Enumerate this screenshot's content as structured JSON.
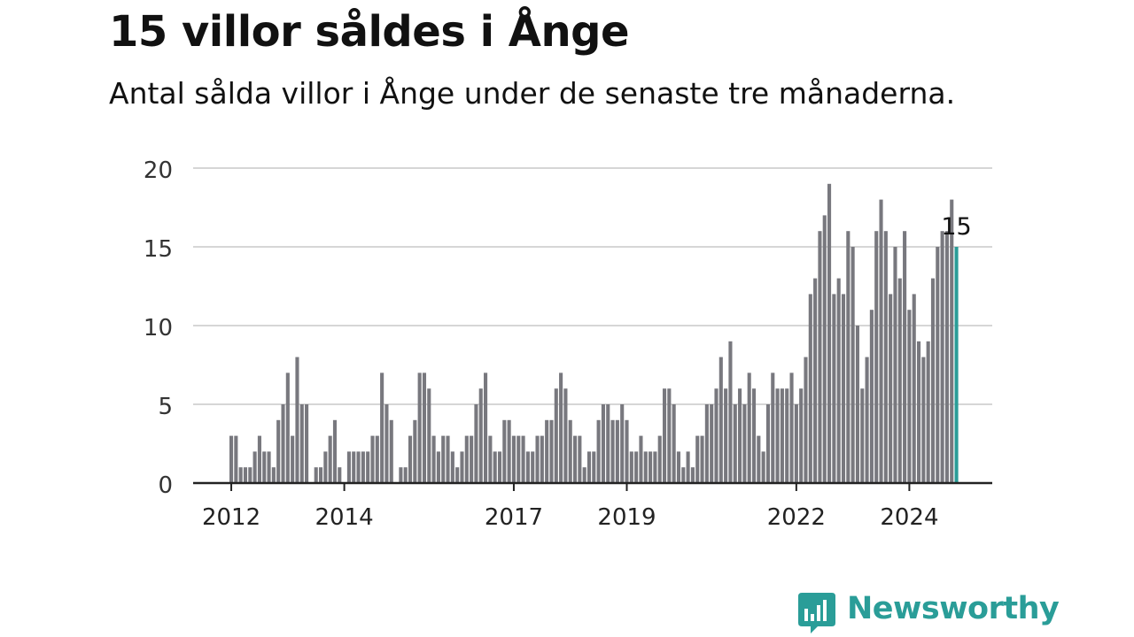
{
  "header": {
    "title": "15 villor såldes i Ånge",
    "subtitle": "Antal sålda villor i Ånge under de senaste tre månaderna."
  },
  "brand": {
    "name": "Newsworthy",
    "color": "#2a9d98",
    "icon": "bar-chart-speech-bubble-icon"
  },
  "chart_data": {
    "type": "bar",
    "x_start": "2012-01",
    "x_interval": "month",
    "x_tick_labels": [
      "2012",
      "2014",
      "2017",
      "2019",
      "2022",
      "2024"
    ],
    "x_tick_dates": [
      "2012-01",
      "2014-01",
      "2017-01",
      "2019-01",
      "2022-01",
      "2024-01"
    ],
    "ylim": [
      0,
      20
    ],
    "y_ticks": [
      0,
      5,
      10,
      15,
      20
    ],
    "grid": true,
    "values": [
      3,
      3,
      1,
      1,
      1,
      2,
      3,
      2,
      2,
      1,
      4,
      5,
      7,
      3,
      8,
      5,
      5,
      0,
      1,
      1,
      2,
      3,
      4,
      1,
      0,
      2,
      2,
      2,
      2,
      2,
      3,
      3,
      7,
      5,
      4,
      0,
      1,
      1,
      3,
      4,
      7,
      7,
      6,
      3,
      2,
      3,
      3,
      2,
      1,
      2,
      3,
      3,
      5,
      6,
      7,
      3,
      2,
      2,
      4,
      4,
      3,
      3,
      3,
      2,
      2,
      3,
      3,
      4,
      4,
      6,
      7,
      6,
      4,
      3,
      3,
      1,
      2,
      2,
      4,
      5,
      5,
      4,
      4,
      5,
      4,
      2,
      2,
      3,
      2,
      2,
      2,
      3,
      6,
      6,
      5,
      2,
      1,
      2,
      1,
      3,
      3,
      5,
      5,
      6,
      8,
      6,
      9,
      5,
      6,
      5,
      7,
      6,
      3,
      2,
      5,
      7,
      6,
      6,
      6,
      7,
      5,
      6,
      8,
      12,
      13,
      16,
      17,
      19,
      12,
      13,
      12,
      16,
      15,
      10,
      6,
      8,
      11,
      16,
      18,
      16,
      12,
      15,
      13,
      16,
      11,
      12,
      9,
      8,
      9,
      13,
      15,
      16,
      16,
      18,
      15
    ],
    "highlight_last": true,
    "bar_color": "#78787e",
    "highlight_color": "#2a9d98",
    "annotation": {
      "label": "15",
      "target": "last"
    }
  }
}
